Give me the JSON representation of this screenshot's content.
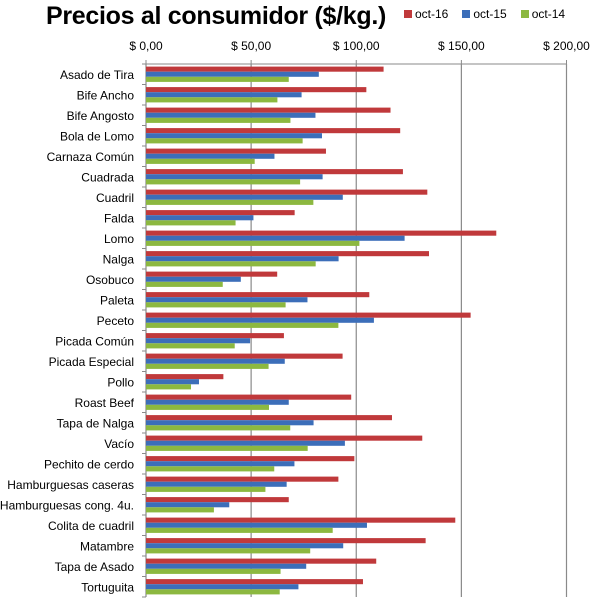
{
  "chart_data": {
    "type": "bar",
    "orientation": "horizontal",
    "title": "Precios al consumidor ($/kg.)",
    "xlabel": "",
    "ylabel": "",
    "xlim": [
      0,
      200
    ],
    "x_ticks": [
      0,
      50,
      100,
      150,
      200
    ],
    "x_tick_labels": [
      "$ 0,00",
      "$ 50,00",
      "$ 100,00",
      "$ 150,00",
      "$ 200,00"
    ],
    "x_axis_position": "top",
    "grid": true,
    "legend_position": "top-right",
    "categories": [
      "Asado de Tira",
      "Bife Ancho",
      "Bife Angosto",
      "Bola de Lomo",
      "Carnaza Común",
      "Cuadrada",
      "Cuadril",
      "Falda",
      "Lomo",
      "Nalga",
      "Osobuco",
      "Paleta",
      "Peceto",
      "Picada Común",
      "Picada Especial",
      "Pollo",
      "Roast Beef",
      "Tapa de Nalga",
      "Vacío",
      "Pechito de cerdo",
      "Hamburguesas caseras",
      "Hamburguesas cong. 4u.",
      "Colita de cuadril",
      "Matambre",
      "Tapa de Asado",
      "Tortuguita"
    ],
    "series": [
      {
        "name": "oct-16",
        "color": "#C0393B",
        "values": [
          113.0,
          104.8,
          116.3,
          120.9,
          85.6,
          122.2,
          133.8,
          70.7,
          166.6,
          134.6,
          62.4,
          106.2,
          154.4,
          65.6,
          93.5,
          36.8,
          97.6,
          117.0,
          131.4,
          99.1,
          91.5,
          67.9,
          147.1,
          133.0,
          109.5,
          103.2
        ]
      },
      {
        "name": "oct-15",
        "color": "#3C6EB9",
        "values": [
          82.2,
          74.0,
          80.6,
          83.7,
          61.1,
          84.0,
          93.6,
          51.1,
          123.0,
          91.6,
          45.1,
          76.8,
          108.4,
          49.5,
          66.0,
          25.2,
          67.9,
          79.7,
          94.6,
          70.6,
          66.9,
          39.6,
          105.1,
          93.8,
          76.2,
          72.5
        ]
      },
      {
        "name": "oct-14",
        "color": "#8CB840",
        "values": [
          67.9,
          62.5,
          68.7,
          74.5,
          51.7,
          73.3,
          79.6,
          42.6,
          101.5,
          80.7,
          36.5,
          66.4,
          91.5,
          42.2,
          58.3,
          21.4,
          58.5,
          68.6,
          76.9,
          61.0,
          56.8,
          32.3,
          88.8,
          78.1,
          64.0,
          63.6
        ]
      }
    ]
  }
}
